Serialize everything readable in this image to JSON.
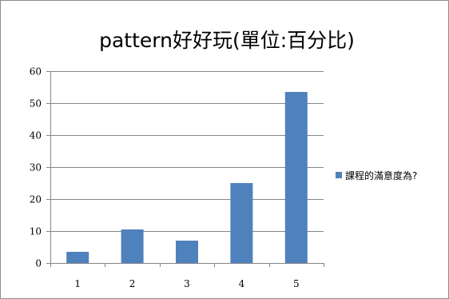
{
  "chart_data": {
    "type": "bar",
    "title": "pattern好好玩(單位:百分比)",
    "xlabel": "",
    "ylabel": "",
    "categories": [
      "1",
      "2",
      "3",
      "4",
      "5"
    ],
    "series": [
      {
        "name": "課程的滿意度為?",
        "values": [
          3.5,
          10.5,
          7,
          25,
          53.5
        ],
        "color": "#4f81bd"
      }
    ],
    "ylim": [
      0,
      60
    ],
    "yticks": [
      0,
      10,
      20,
      30,
      40,
      50,
      60
    ],
    "grid": true,
    "gridline_color": "#868686",
    "legend_position": "right"
  }
}
